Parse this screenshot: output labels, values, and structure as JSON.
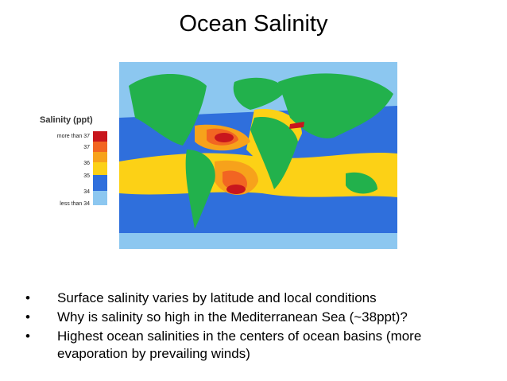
{
  "title": "Ocean Salinity",
  "legend": {
    "title": "Salinity (ppt)",
    "items": [
      "more than 37",
      "37",
      "36",
      "35",
      "34",
      "less than 34"
    ]
  },
  "bullets": [
    "Surface salinity varies by latitude and local conditions",
    "Why is salinity so high in the Mediterranean Sea (~38ppt)?",
    "Highest ocean salinities in the centers of ocean basins (more evaporation by prevailing winds)"
  ]
}
